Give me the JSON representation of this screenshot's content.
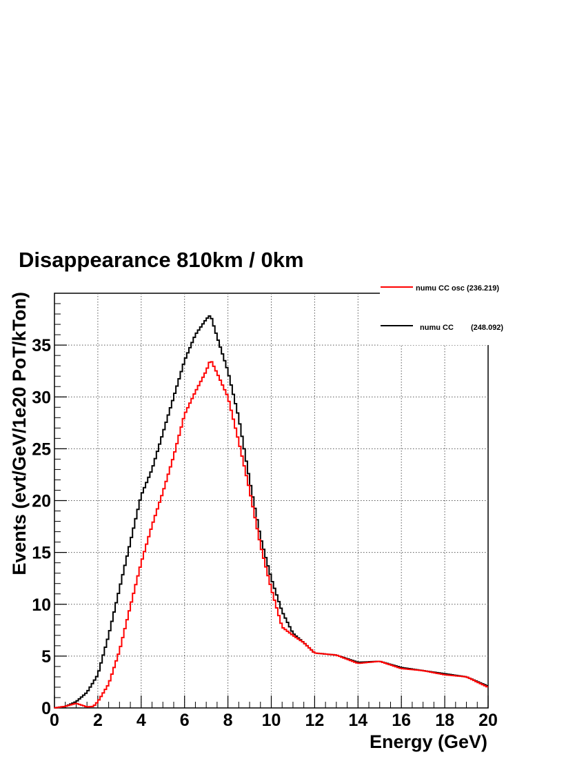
{
  "chart_data": {
    "type": "line",
    "title": "Disappearance 810km / 0km",
    "xlabel": "Energy (GeV)",
    "ylabel": "Events (evt/GeV/1e20 PoT/kTon)",
    "xlim": [
      0,
      20
    ],
    "ylim": [
      0,
      40
    ],
    "x_ticks": [
      "0",
      "2",
      "4",
      "6",
      "8",
      "10",
      "12",
      "14",
      "16",
      "18",
      "20"
    ],
    "y_ticks": [
      "0",
      "5",
      "10",
      "15",
      "20",
      "25",
      "30",
      "35"
    ],
    "grid": true,
    "legend_position": "top-right",
    "bin_width": 0.1,
    "series": [
      {
        "name": "numu CC osc",
        "legend_label": "numu CC osc (236.219)",
        "integral": "(236.219)",
        "color": "#ff0000",
        "style": "step",
        "points": [
          [
            0,
            0.0
          ],
          [
            0.5,
            0.15
          ],
          [
            1.0,
            0.45
          ],
          [
            1.5,
            0.1
          ],
          [
            1.8,
            0.15
          ],
          [
            2.0,
            0.6
          ],
          [
            2.5,
            2.3
          ],
          [
            3.0,
            5.5
          ],
          [
            3.5,
            9.8
          ],
          [
            4.0,
            14.0
          ],
          [
            4.5,
            17.6
          ],
          [
            5.0,
            20.8
          ],
          [
            5.5,
            24.3
          ],
          [
            6.0,
            28.3
          ],
          [
            6.5,
            30.5
          ],
          [
            7.0,
            32.5
          ],
          [
            7.2,
            33.6
          ],
          [
            7.5,
            32.3
          ],
          [
            8.0,
            30.0
          ],
          [
            8.5,
            25.7
          ],
          [
            9.0,
            21.0
          ],
          [
            9.5,
            15.7
          ],
          [
            10.0,
            11.5
          ],
          [
            10.5,
            7.8
          ],
          [
            11.0,
            7.0
          ],
          [
            11.5,
            6.3
          ],
          [
            12.0,
            5.3
          ],
          [
            13.0,
            5.1
          ],
          [
            14.0,
            4.3
          ],
          [
            15.0,
            4.5
          ],
          [
            16.0,
            3.8
          ],
          [
            17.0,
            3.6
          ],
          [
            18.0,
            3.2
          ],
          [
            19.0,
            3.0
          ],
          [
            20.0,
            2.0
          ]
        ]
      },
      {
        "name": "numu CC",
        "legend_label": "numu CC",
        "integral": "(248.092)",
        "color": "#000000",
        "style": "step",
        "points": [
          [
            0,
            0.0
          ],
          [
            0.5,
            0.15
          ],
          [
            1.0,
            0.6
          ],
          [
            1.5,
            1.5
          ],
          [
            2.0,
            3.2
          ],
          [
            2.5,
            7.0
          ],
          [
            3.0,
            11.5
          ],
          [
            3.5,
            16.0
          ],
          [
            4.0,
            20.5
          ],
          [
            4.5,
            23.0
          ],
          [
            5.0,
            26.5
          ],
          [
            5.5,
            30.0
          ],
          [
            6.0,
            33.5
          ],
          [
            6.5,
            36.0
          ],
          [
            7.0,
            37.5
          ],
          [
            7.2,
            37.9
          ],
          [
            7.5,
            35.8
          ],
          [
            8.0,
            32.5
          ],
          [
            8.5,
            28.0
          ],
          [
            9.0,
            22.0
          ],
          [
            9.5,
            16.5
          ],
          [
            10.0,
            12.5
          ],
          [
            10.5,
            9.3
          ],
          [
            11.0,
            7.2
          ],
          [
            11.5,
            6.3
          ],
          [
            12.0,
            5.3
          ],
          [
            13.0,
            5.1
          ],
          [
            14.0,
            4.4
          ],
          [
            15.0,
            4.5
          ],
          [
            16.0,
            3.9
          ],
          [
            17.0,
            3.6
          ],
          [
            18.0,
            3.3
          ],
          [
            19.0,
            3.0
          ],
          [
            20.0,
            2.1
          ]
        ]
      }
    ]
  }
}
